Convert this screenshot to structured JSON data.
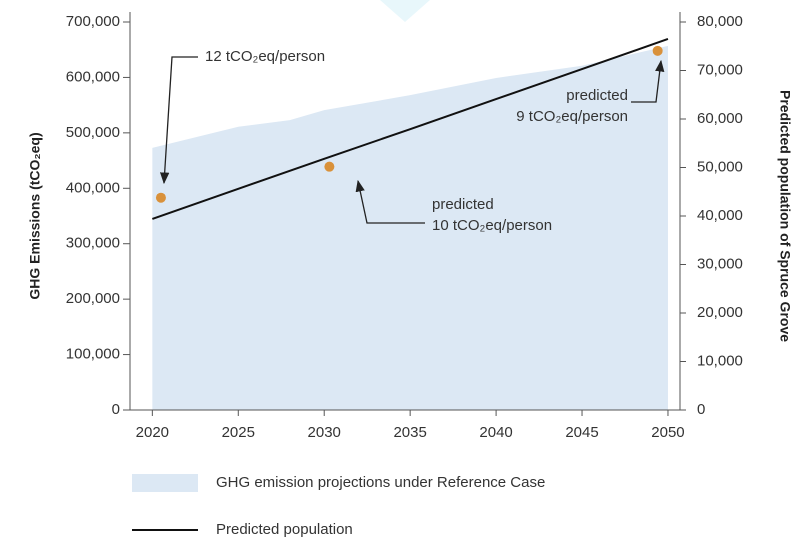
{
  "chart_data": {
    "type": "area",
    "y_label": "GHG Emissions (tCO₂eq)",
    "y2_label": "Predicted population of Spruce Grove",
    "xlim": [
      2018.7,
      2050.7
    ],
    "xticks": [
      2020,
      2025,
      2030,
      2035,
      2040,
      2045,
      2050
    ],
    "ylim": [
      0,
      700000
    ],
    "yticks": [
      0,
      {
        "value": 100000,
        "label": "100,000"
      },
      {
        "value": 200000,
        "label": "200,000"
      },
      {
        "value": 300000,
        "label": "300,000"
      },
      {
        "value": 400000,
        "label": "400,000"
      },
      {
        "value": 500000,
        "label": "500,000"
      },
      {
        "value": 600000,
        "label": "600,000"
      },
      {
        "value": 700000,
        "label": "700,000"
      }
    ],
    "y2lim": [
      0,
      80000
    ],
    "y2ticks": [
      0,
      {
        "value": 10000,
        "label": "10,000"
      },
      {
        "value": 20000,
        "label": "20,000"
      },
      {
        "value": 30000,
        "label": "30,000"
      },
      {
        "value": 40000,
        "label": "40,000"
      },
      {
        "value": 50000,
        "label": "50,000"
      },
      {
        "value": 60000,
        "label": "60,000"
      },
      {
        "value": 70000,
        "label": "70,000"
      },
      {
        "value": 80000,
        "label": "80,000"
      }
    ],
    "series": [
      {
        "name": "GHG emission projections under Reference Case",
        "type": "area",
        "color": "#dce8f4",
        "x": [
          2020,
          2025,
          2028,
          2030,
          2035,
          2040,
          2045,
          2050
        ],
        "values": [
          473000,
          511000,
          523000,
          541000,
          568000,
          599000,
          621000,
          657000
        ]
      },
      {
        "name": "Predicted population",
        "type": "line",
        "axis": "y2",
        "color": "#111111",
        "x": [
          2020,
          2025,
          2030,
          2035,
          2040,
          2045,
          2050
        ],
        "values": [
          39400,
          45600,
          51800,
          57900,
          64100,
          70300,
          76500
        ]
      }
    ],
    "points": {
      "color": "#d9913a",
      "x": [
        2020.5,
        2030.3,
        2049.4
      ],
      "values": [
        383000,
        439000,
        648000
      ]
    },
    "annotations": [
      {
        "lines": [
          "12 tCO₂eq/person"
        ]
      },
      {
        "lines": [
          "predicted",
          "10 tCO₂eq/person"
        ]
      },
      {
        "lines": [
          "predicted",
          "9 tCO₂eq/person"
        ]
      }
    ]
  }
}
